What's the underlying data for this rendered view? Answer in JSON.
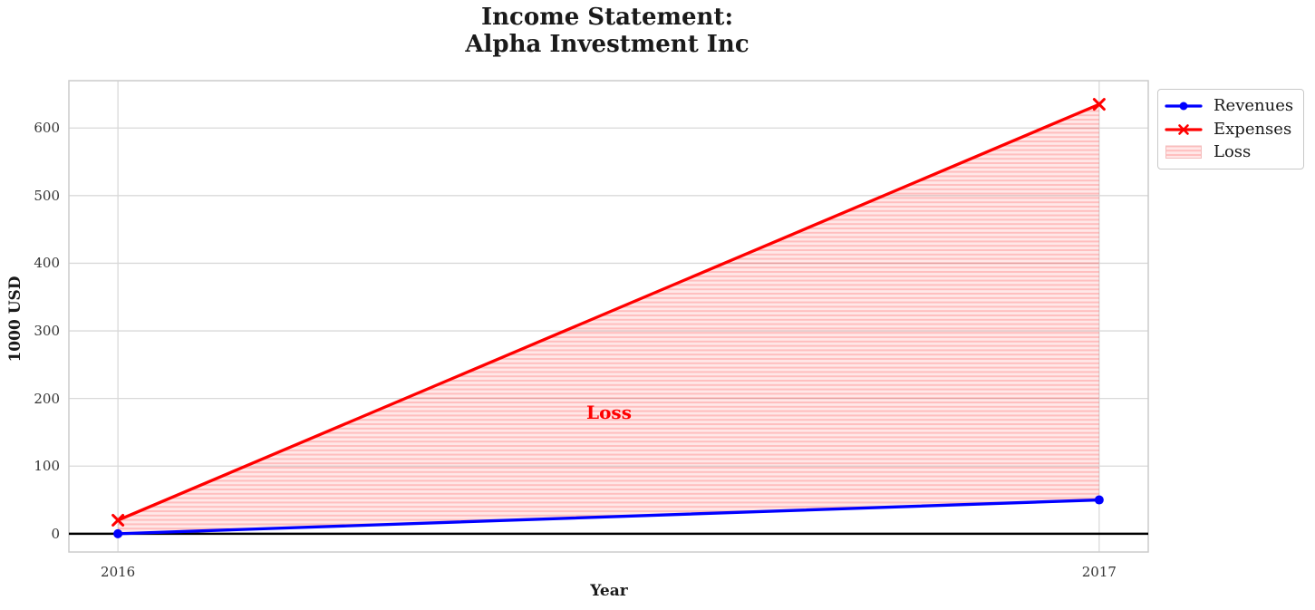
{
  "title": "Income Statement:\nAlpha Investment Inc",
  "chart_data": {
    "type": "line",
    "title": "Income Statement: Alpha Investment Inc",
    "xlabel": "Year",
    "ylabel": "1000 USD",
    "x": [
      2016,
      2017
    ],
    "x_ticklabels": [
      "2016",
      "2017"
    ],
    "y_ticks": [
      0,
      100,
      200,
      300,
      400,
      500,
      600
    ],
    "xlim": [
      2015.95,
      2017.05
    ],
    "ylim": [
      -27,
      670
    ],
    "grid": true,
    "zero_line": true,
    "series": [
      {
        "name": "Revenues",
        "values": [
          0,
          50
        ],
        "color": "#0000ff",
        "marker": "circle"
      },
      {
        "name": "Expenses",
        "values": [
          20,
          635
        ],
        "color": "#ff0000",
        "marker": "x"
      }
    ],
    "fill_between": {
      "label": "Loss",
      "upper": "Expenses",
      "lower": "Revenues",
      "color": "#ff0000",
      "hatch": "horizontal"
    },
    "annotation": {
      "text": "Loss",
      "x": 2016.5,
      "y": 180,
      "color": "#ff0000"
    },
    "legend": {
      "position": "outside-upper-right",
      "items": [
        "Revenues",
        "Expenses",
        "Loss"
      ]
    }
  },
  "colors": {
    "revenues": "#0000ff",
    "expenses": "#ff0000",
    "loss_fill_base_opacity": 0.09,
    "loss_fill_stripe_opacity": 0.18,
    "grid": "#d9d9d9",
    "spine": "#cccccc",
    "zero_line": "#000000",
    "text": "#1a1a1a",
    "tick_text": "#333333"
  }
}
